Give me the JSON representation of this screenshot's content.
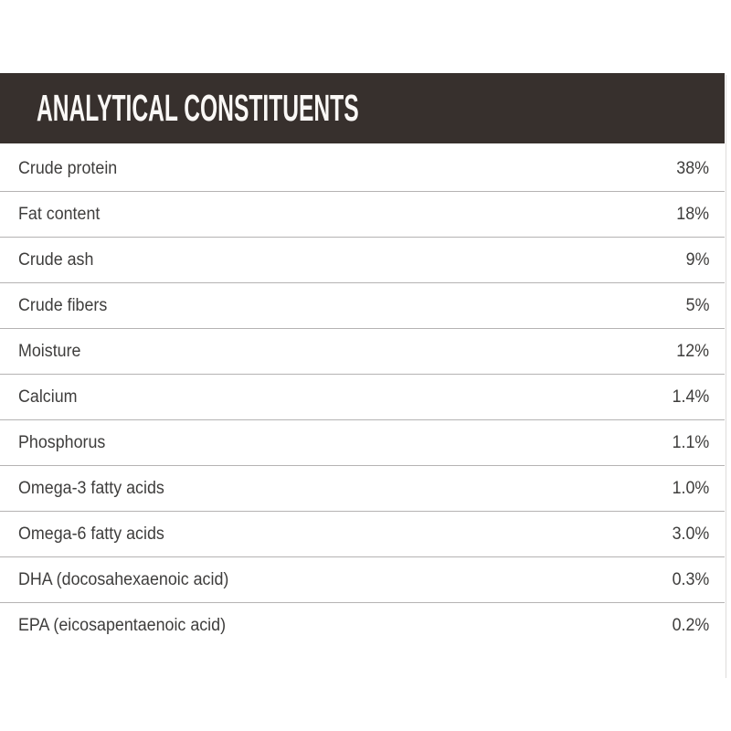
{
  "header": {
    "title": "ANALYTICAL CONSTITUENTS"
  },
  "theme": {
    "page_bg": "#ffffff",
    "header_bg": "#37302d",
    "header_text": "#faf8f6",
    "row_text": "#3e3d3c",
    "divider": "#b5b3b3"
  },
  "table": {
    "rows": [
      {
        "label": "Crude protein",
        "value": "38%"
      },
      {
        "label": "Fat content",
        "value": "18%"
      },
      {
        "label": "Crude ash",
        "value": "9%"
      },
      {
        "label": "Crude fibers",
        "value": "5%"
      },
      {
        "label": "Moisture",
        "value": "12%"
      },
      {
        "label": "Calcium",
        "value": "1.4%"
      },
      {
        "label": "Phosphorus",
        "value": "1.1%"
      },
      {
        "label": "Omega-3 fatty acids",
        "value": "1.0%"
      },
      {
        "label": "Omega-6 fatty acids",
        "value": "3.0%"
      },
      {
        "label": "DHA (docosahexaenoic acid)",
        "value": "0.3%"
      },
      {
        "label": "EPA (eicosapentaenoic acid)",
        "value": "0.2%"
      }
    ]
  }
}
